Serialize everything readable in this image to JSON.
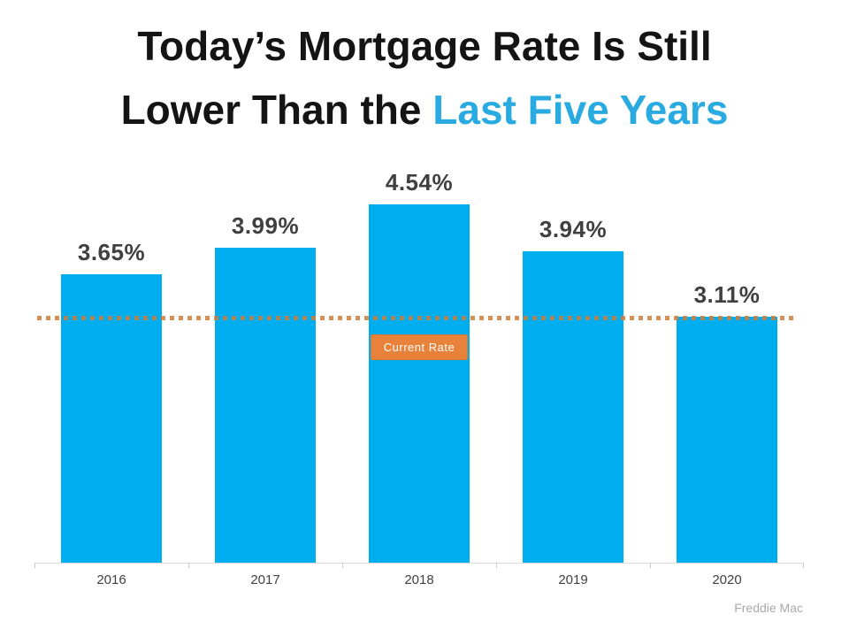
{
  "title": {
    "line1": "Today’s Mortgage Rate Is Still",
    "line2_black": "Lower Than the ",
    "line2_accent": "Last Five Years"
  },
  "chart_data": {
    "type": "bar",
    "title": "Today’s Mortgage Rate Is Still Lower Than the Last Five Years",
    "categories": [
      "2016",
      "2017",
      "2018",
      "2019",
      "2020"
    ],
    "values": [
      3.65,
      3.99,
      4.54,
      3.94,
      3.11
    ],
    "value_labels": [
      "3.65%",
      "3.99%",
      "4.54%",
      "3.94%",
      "3.11%"
    ],
    "xlabel": "",
    "ylabel": "",
    "ylim": [
      0,
      4.93
    ],
    "grid": false,
    "legend": false,
    "reference_line": {
      "value": 3.11,
      "label": "Current Rate",
      "style": "dotted"
    },
    "source": "Freddie Mac"
  },
  "colors": {
    "bar": "#00AEEF",
    "title_accent": "#29ABE2",
    "value_label": "#404040",
    "reference_line": "#CE7D39",
    "badge_bg": "#E8823B",
    "badge_text": "#FFFFFF",
    "axis": "#D9D9D9",
    "source_text": "#A9A9A9"
  }
}
